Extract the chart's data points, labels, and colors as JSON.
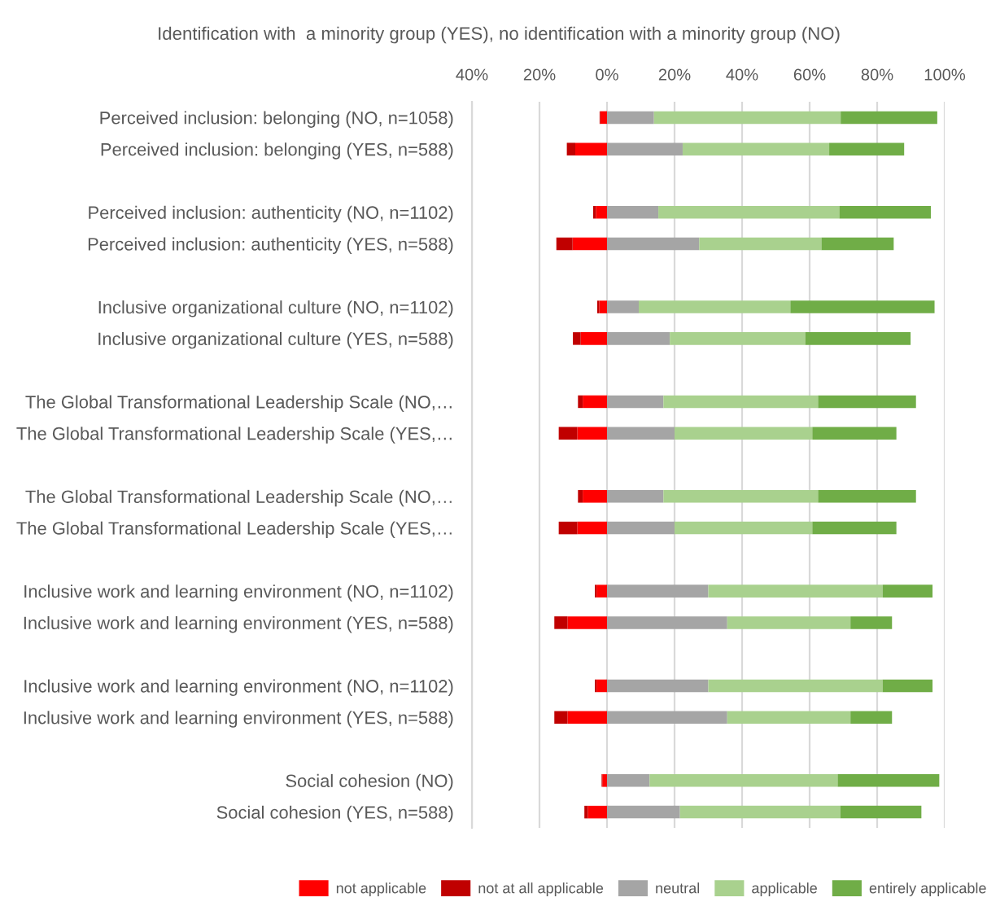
{
  "chart_data": {
    "type": "bar",
    "orientation": "horizontal",
    "stacked": true,
    "title": "Identification with  a minority group (YES), no identification with a minority group (NO)",
    "categories": [
      "Perceived inclusion: belonging (NO, n=1058)",
      "Perceived inclusion: belonging (YES, n=588)",
      null,
      "Perceived inclusion: authenticity (NO, n=1102)",
      "Perceived inclusion: authenticity (YES, n=588)",
      null,
      "Inclusive organizational culture (NO, n=1102)",
      "Inclusive organizational culture (YES, n=588)",
      null,
      "The Global Transformational Leadership Scale (NO,…",
      "The Global Transformational Leadership Scale (YES,…",
      null,
      "The Global Transformational Leadership Scale (NO,…",
      "The Global Transformational Leadership Scale (YES,…",
      null,
      "Inclusive work and learning environment (NO, n=1102)",
      "Inclusive work and learning environment (YES, n=588)",
      null,
      "Inclusive work and learning environment (NO, n=1102)",
      "Inclusive work and learning environment (YES, n=588)",
      null,
      "Social cohesion (NO)",
      "Social cohesion (YES, n=588)"
    ],
    "series": [
      {
        "name": "not applicable",
        "color": "#ff0000",
        "values": [
          -2.0,
          -9.4,
          null,
          -3.3,
          -10.2,
          null,
          -2.3,
          -7.8,
          null,
          -7.2,
          -8.8,
          null,
          -7.2,
          -8.8,
          null,
          -3.1,
          -11.7,
          null,
          -3.1,
          -11.7,
          null,
          -1.4,
          -5.7
        ]
      },
      {
        "name": "not at all applicable",
        "color": "#c00000",
        "values": [
          -0.2,
          -2.5,
          null,
          -0.8,
          -4.8,
          null,
          -0.6,
          -2.3,
          null,
          -1.4,
          -5.5,
          null,
          -1.4,
          -5.5,
          null,
          -0.5,
          -3.9,
          null,
          -0.5,
          -3.9,
          null,
          -0.2,
          -1.0
        ]
      },
      {
        "name": "neutral",
        "color": "#a5a5a5",
        "values": [
          13.9,
          22.4,
          null,
          15.2,
          27.3,
          null,
          9.4,
          18.6,
          null,
          16.7,
          20.0,
          null,
          16.7,
          20.0,
          null,
          30.0,
          35.6,
          null,
          30.0,
          35.6,
          null,
          12.6,
          21.6
        ]
      },
      {
        "name": "applicable",
        "color": "#a9d18e",
        "values": [
          55.3,
          43.4,
          null,
          53.6,
          36.2,
          null,
          44.9,
          40.1,
          null,
          45.8,
          40.8,
          null,
          45.8,
          40.8,
          null,
          51.6,
          36.5,
          null,
          51.6,
          36.5,
          null,
          55.7,
          47.5
        ]
      },
      {
        "name": "entirely applicable",
        "color": "#70ad47",
        "values": [
          28.6,
          22.2,
          null,
          27.1,
          21.4,
          null,
          42.7,
          31.2,
          null,
          29.0,
          24.9,
          null,
          29.0,
          24.9,
          null,
          14.8,
          12.3,
          null,
          14.8,
          12.3,
          null,
          30.1,
          24.0
        ]
      }
    ],
    "xlim": [
      -40,
      100
    ],
    "xticks": [
      {
        "value": -40,
        "label": "40%"
      },
      {
        "value": -20,
        "label": "20%"
      },
      {
        "value": 0,
        "label": "0%"
      },
      {
        "value": 20,
        "label": "20%"
      },
      {
        "value": 40,
        "label": "40%"
      },
      {
        "value": 60,
        "label": "60%"
      },
      {
        "value": 80,
        "label": "80%"
      },
      {
        "value": 100,
        "label": "100%"
      }
    ],
    "grid": "x",
    "legend": "bottom"
  }
}
